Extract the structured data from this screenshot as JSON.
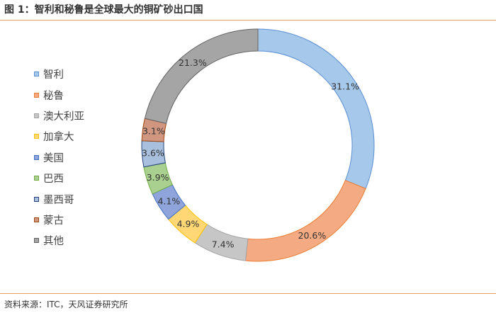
{
  "title": "图 1：智利和秘鲁是全球最大的铜矿砂出口国",
  "source": "资料来源：ITC，天风证券研究所",
  "colors": {
    "fills": [
      "#a6c8ea",
      "#f4ab84",
      "#c6c6c6",
      "#ffd875",
      "#8ea4da",
      "#a9d08e",
      "#a8bfdd",
      "#d19680",
      "#a5a5a5"
    ],
    "strokes": [
      "#5b8fd3",
      "#ed7d31",
      "#a5a5a5",
      "#ffc000",
      "#4472c4",
      "#70ad47",
      "#264478",
      "#9e480e",
      "#636363"
    ]
  },
  "chart_data": {
    "type": "pie",
    "donut": true,
    "categories": [
      "智利",
      "秘鲁",
      "澳大利亚",
      "加拿大",
      "美国",
      "巴西",
      "墨西哥",
      "蒙古",
      "其他"
    ],
    "values": [
      31.1,
      20.6,
      7.4,
      4.9,
      4.1,
      3.9,
      3.6,
      3.1,
      21.3
    ],
    "labels": [
      "31.1%",
      "20.6%",
      "7.4%",
      "4.9%",
      "4.1%",
      "3.9%",
      "3.6%",
      "3.1%",
      "21.3%"
    ],
    "unit": "%",
    "legend": "left"
  }
}
